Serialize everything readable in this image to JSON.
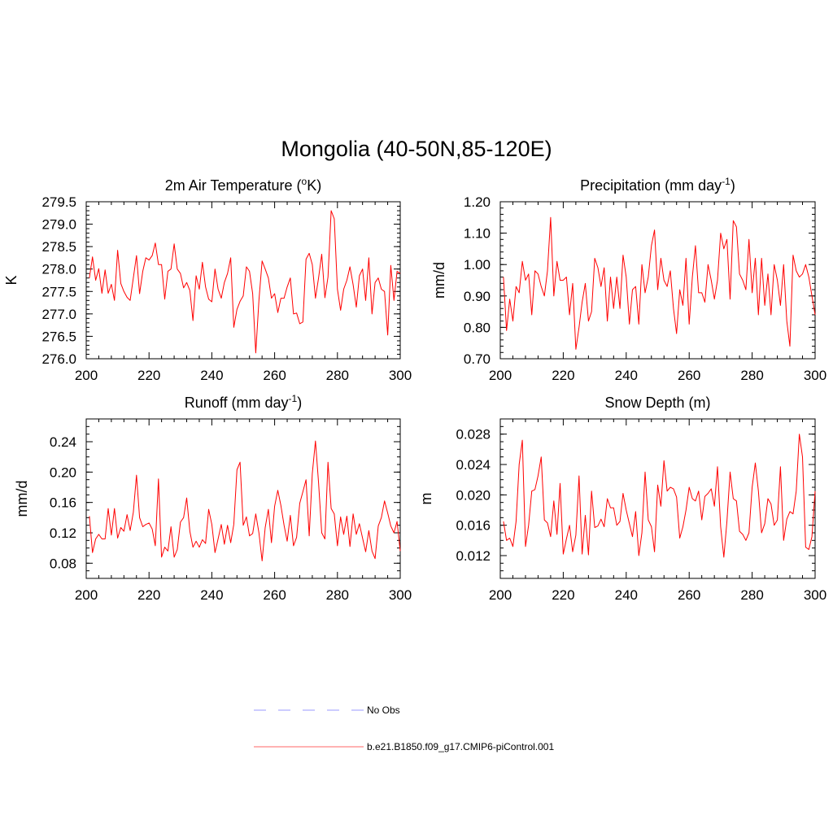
{
  "figure": {
    "title": "Mongolia (40-50N,85-120E)"
  },
  "legend": {
    "placement": "bottom-center",
    "entries": [
      {
        "label": "No Obs",
        "color": "#9999ff",
        "style": "dashed"
      },
      {
        "label": "b.e21.B1850.f09_g17.CMIP6-piControl.001",
        "color": "#ff6666",
        "style": "solid"
      }
    ]
  },
  "chart_data": [
    {
      "type": "line",
      "title_main": "2m Air Temperature (",
      "title_sup": "o",
      "title_tail": "K)",
      "xlabel": "",
      "ylabel": "K",
      "xlim": [
        200,
        300
      ],
      "ylim": [
        276.0,
        279.5
      ],
      "xticks": [
        200,
        220,
        240,
        260,
        280,
        300
      ],
      "yticks": [
        "276.0",
        "276.5",
        "277.0",
        "277.5",
        "278.0",
        "278.5",
        "279.0",
        "279.5"
      ],
      "yminor_step": 0.1,
      "line_color": "#ff0000",
      "x_start": 201,
      "values": [
        277.8,
        278.27,
        277.75,
        278.01,
        277.46,
        277.98,
        277.46,
        277.66,
        277.3,
        278.42,
        277.68,
        277.5,
        277.37,
        277.3,
        277.8,
        278.3,
        277.45,
        277.95,
        278.25,
        278.2,
        278.3,
        278.58,
        278.1,
        278.1,
        277.33,
        277.95,
        278.0,
        278.56,
        278.0,
        277.9,
        277.58,
        277.7,
        277.52,
        276.85,
        277.85,
        277.55,
        278.15,
        277.6,
        277.33,
        277.27,
        278.0,
        277.55,
        277.35,
        277.7,
        277.9,
        278.25,
        276.7,
        277.1,
        277.28,
        277.4,
        278.05,
        277.95,
        277.45,
        276.13,
        277.3,
        278.18,
        278.0,
        277.8,
        277.35,
        277.45,
        277.03,
        277.35,
        277.35,
        277.6,
        277.8,
        277.0,
        277.02,
        276.78,
        276.82,
        278.22,
        278.35,
        278.1,
        277.35,
        277.8,
        278.33,
        277.36,
        277.82,
        279.3,
        279.12,
        277.55,
        277.08,
        277.55,
        277.75,
        278.05,
        277.65,
        277.15,
        277.85,
        278.0,
        277.3,
        278.25,
        277.0,
        277.7,
        277.8,
        277.55,
        277.5,
        276.53,
        278.08,
        277.3,
        277.95,
        277.9
      ]
    },
    {
      "type": "line",
      "title_main": "Precipitation (mm day",
      "title_sup": "-1",
      "title_tail": ")",
      "xlabel": "",
      "ylabel": "mm/d",
      "xlim": [
        200,
        300
      ],
      "ylim": [
        0.7,
        1.2
      ],
      "xticks": [
        200,
        220,
        240,
        260,
        280,
        300
      ],
      "yticks": [
        "0.70",
        "0.80",
        "0.90",
        "1.00",
        "1.10",
        "1.20"
      ],
      "yminor_step": 0.02,
      "line_color": "#ff0000",
      "x_start": 201,
      "values": [
        0.96,
        0.79,
        0.89,
        0.82,
        0.93,
        0.91,
        1.01,
        0.95,
        0.97,
        0.84,
        0.98,
        0.97,
        0.93,
        0.9,
        0.98,
        1.15,
        0.9,
        1.01,
        0.95,
        0.95,
        0.96,
        0.84,
        0.94,
        0.73,
        0.8,
        0.88,
        0.94,
        0.82,
        0.85,
        1.02,
        0.99,
        0.93,
        0.99,
        0.82,
        0.96,
        0.86,
        0.96,
        0.86,
        1.03,
        0.96,
        0.81,
        0.92,
        0.93,
        0.81,
        1.0,
        0.91,
        0.96,
        1.06,
        1.11,
        0.92,
        1.02,
        0.95,
        0.93,
        0.98,
        0.86,
        0.78,
        0.92,
        0.87,
        1.02,
        0.81,
        0.96,
        1.06,
        0.91,
        0.91,
        0.88,
        1.0,
        0.95,
        0.89,
        0.95,
        1.1,
        1.05,
        1.08,
        0.89,
        1.14,
        1.12,
        0.97,
        0.95,
        0.92,
        1.08,
        0.91,
        1.02,
        0.84,
        1.02,
        0.87,
        0.97,
        0.84,
        1.0,
        0.95,
        0.87,
        1.0,
        0.82,
        0.74,
        1.03,
        0.98,
        0.96,
        0.97,
        1.0,
        0.96,
        0.9,
        0.84
      ]
    },
    {
      "type": "line",
      "title_main": "Runoff (mm day",
      "title_sup": "-1",
      "title_tail": ")",
      "xlabel": "",
      "ylabel": "mm/d",
      "xlim": [
        200,
        300
      ],
      "ylim": [
        0.06,
        0.27
      ],
      "xticks": [
        200,
        220,
        240,
        260,
        280,
        300
      ],
      "yticks": [
        "0.08",
        "0.12",
        "0.16",
        "0.20",
        "0.24"
      ],
      "yminor_step": 0.01,
      "line_color": "#ff0000",
      "x_start": 201,
      "values": [
        0.142,
        0.094,
        0.112,
        0.118,
        0.112,
        0.112,
        0.152,
        0.117,
        0.152,
        0.113,
        0.127,
        0.122,
        0.144,
        0.123,
        0.147,
        0.196,
        0.14,
        0.128,
        0.131,
        0.133,
        0.125,
        0.103,
        0.191,
        0.088,
        0.101,
        0.096,
        0.128,
        0.088,
        0.098,
        0.134,
        0.14,
        0.166,
        0.122,
        0.101,
        0.109,
        0.101,
        0.111,
        0.106,
        0.151,
        0.131,
        0.094,
        0.112,
        0.131,
        0.105,
        0.13,
        0.107,
        0.131,
        0.203,
        0.213,
        0.13,
        0.141,
        0.116,
        0.119,
        0.145,
        0.12,
        0.083,
        0.127,
        0.151,
        0.107,
        0.155,
        0.176,
        0.156,
        0.13,
        0.109,
        0.143,
        0.103,
        0.114,
        0.159,
        0.174,
        0.19,
        0.116,
        0.198,
        0.241,
        0.186,
        0.12,
        0.112,
        0.213,
        0.152,
        0.145,
        0.103,
        0.141,
        0.118,
        0.142,
        0.102,
        0.145,
        0.118,
        0.132,
        0.113,
        0.095,
        0.123,
        0.096,
        0.086,
        0.129,
        0.14,
        0.162,
        0.146,
        0.129,
        0.12,
        0.135,
        0.096
      ]
    },
    {
      "type": "line",
      "title_main": "Snow Depth (m)",
      "title_sup": "",
      "title_tail": "",
      "xlabel": "",
      "ylabel": "m",
      "xlim": [
        200,
        300
      ],
      "ylim": [
        0.009,
        0.03
      ],
      "xticks": [
        200,
        220,
        240,
        260,
        280,
        300
      ],
      "yticks": [
        "0.012",
        "0.016",
        "0.020",
        "0.024",
        "0.028"
      ],
      "yminor_step": 0.001,
      "line_color": "#ff0000",
      "x_start": 201,
      "values": [
        0.0165,
        0.014,
        0.0143,
        0.0132,
        0.0165,
        0.024,
        0.0272,
        0.0132,
        0.016,
        0.0205,
        0.0207,
        0.0225,
        0.025,
        0.0167,
        0.0163,
        0.0145,
        0.0192,
        0.0148,
        0.0215,
        0.0122,
        0.0142,
        0.016,
        0.0125,
        0.0147,
        0.0225,
        0.0122,
        0.0173,
        0.0121,
        0.0205,
        0.0157,
        0.0159,
        0.0168,
        0.0158,
        0.0195,
        0.0183,
        0.0183,
        0.016,
        0.0165,
        0.0202,
        0.018,
        0.0162,
        0.0145,
        0.0178,
        0.012,
        0.015,
        0.023,
        0.0167,
        0.0158,
        0.0125,
        0.0213,
        0.0185,
        0.0245,
        0.0205,
        0.021,
        0.0208,
        0.0197,
        0.0143,
        0.0158,
        0.018,
        0.021,
        0.0195,
        0.0192,
        0.0205,
        0.0167,
        0.0198,
        0.0202,
        0.0208,
        0.0185,
        0.0237,
        0.0158,
        0.0118,
        0.0165,
        0.023,
        0.0195,
        0.0192,
        0.0152,
        0.0148,
        0.014,
        0.015,
        0.021,
        0.0242,
        0.0205,
        0.015,
        0.0162,
        0.0195,
        0.0188,
        0.016,
        0.0167,
        0.0237,
        0.014,
        0.0168,
        0.0178,
        0.0175,
        0.0205,
        0.028,
        0.025,
        0.0131,
        0.0128,
        0.0145,
        0.0205
      ]
    }
  ]
}
